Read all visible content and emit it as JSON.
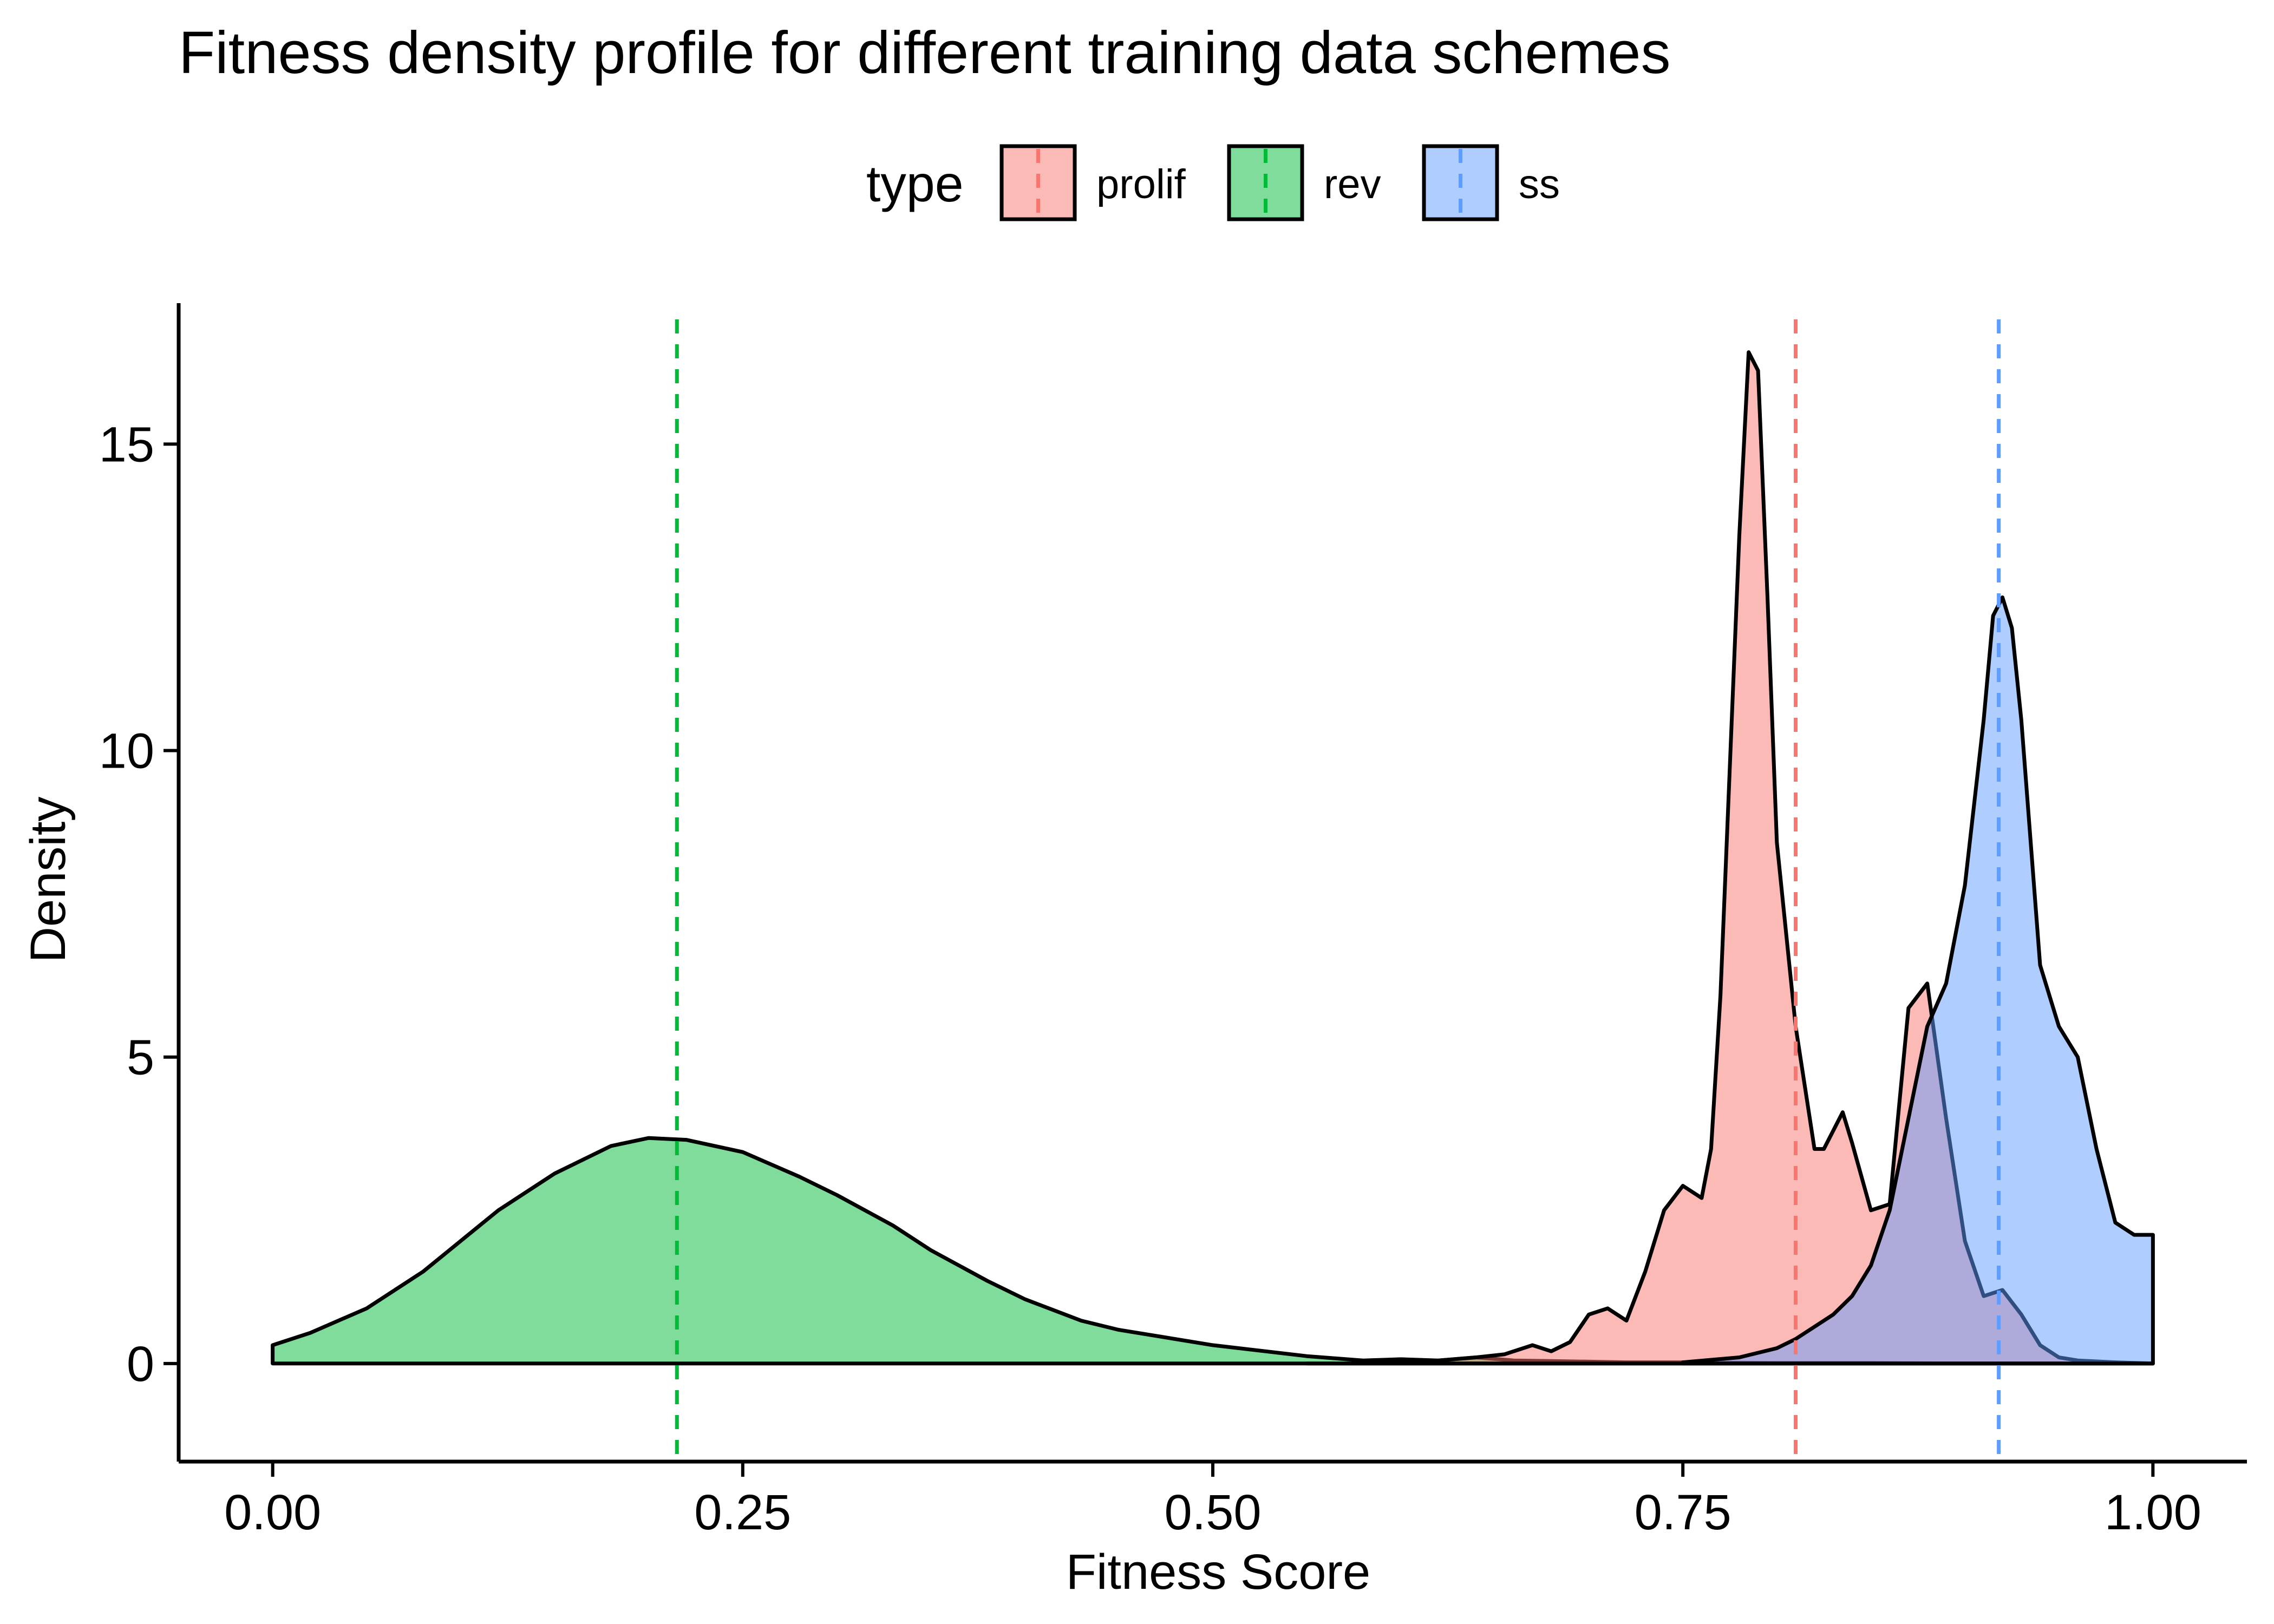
{
  "chart_data": {
    "type": "area",
    "title": "Fitness density profile for different training data schemes",
    "xlabel": "Fitness Score",
    "ylabel": "Density",
    "xlim": [
      -0.05,
      1.05
    ],
    "ylim": [
      -1.6,
      17.3
    ],
    "x_ticks": [
      0.0,
      0.25,
      0.5,
      0.75,
      1.0
    ],
    "x_tick_labels": [
      "0.00",
      "0.25",
      "0.50",
      "0.75",
      "1.00"
    ],
    "y_ticks": [
      0,
      5,
      10,
      15
    ],
    "y_tick_labels": [
      "0",
      "5",
      "10",
      "15"
    ],
    "grid": false,
    "legend": {
      "title": "type",
      "position": "top"
    },
    "series": [
      {
        "name": "rev",
        "color": "#00BA38",
        "mean": 0.215,
        "x": [
          0.0,
          0.02,
          0.05,
          0.08,
          0.1,
          0.12,
          0.15,
          0.18,
          0.2,
          0.22,
          0.25,
          0.28,
          0.3,
          0.33,
          0.35,
          0.38,
          0.4,
          0.43,
          0.45,
          0.5,
          0.55,
          0.58,
          0.6,
          0.62,
          0.64,
          0.66,
          0.68,
          0.7,
          0.72,
          0.75,
          0.8,
          0.85,
          0.9,
          0.95,
          1.0
        ],
        "y": [
          0.3,
          0.5,
          0.9,
          1.5,
          2.0,
          2.5,
          3.1,
          3.55,
          3.68,
          3.65,
          3.45,
          3.05,
          2.75,
          2.25,
          1.85,
          1.35,
          1.05,
          0.7,
          0.55,
          0.3,
          0.12,
          0.05,
          0.07,
          0.05,
          0.1,
          0.05,
          0.04,
          0.03,
          0.02,
          0.02,
          0.01,
          0.01,
          0.0,
          0.0,
          0.0
        ]
      },
      {
        "name": "prolif",
        "color": "#F8766D",
        "mean": 0.81,
        "x": [
          0.55,
          0.58,
          0.6,
          0.62,
          0.64,
          0.655,
          0.67,
          0.68,
          0.69,
          0.7,
          0.71,
          0.72,
          0.73,
          0.74,
          0.75,
          0.76,
          0.765,
          0.77,
          0.78,
          0.785,
          0.79,
          0.795,
          0.8,
          0.81,
          0.82,
          0.825,
          0.835,
          0.84,
          0.85,
          0.86,
          0.87,
          0.88,
          0.89,
          0.9,
          0.91,
          0.92,
          0.93,
          0.94,
          0.95,
          0.96,
          0.98,
          1.0
        ],
        "y": [
          0.0,
          0.0,
          0.02,
          0.05,
          0.1,
          0.15,
          0.3,
          0.2,
          0.35,
          0.8,
          0.9,
          0.7,
          1.5,
          2.5,
          2.9,
          2.7,
          3.5,
          6.0,
          13.5,
          16.5,
          16.2,
          12.5,
          8.5,
          5.5,
          3.5,
          3.5,
          4.1,
          3.6,
          2.5,
          2.6,
          5.8,
          6.2,
          4.0,
          2.0,
          1.1,
          1.2,
          0.8,
          0.3,
          0.1,
          0.05,
          0.02,
          0.0
        ]
      },
      {
        "name": "ss",
        "color": "#619CFF",
        "mean": 0.918,
        "x": [
          0.75,
          0.78,
          0.8,
          0.81,
          0.83,
          0.84,
          0.85,
          0.86,
          0.87,
          0.88,
          0.89,
          0.9,
          0.91,
          0.915,
          0.92,
          0.925,
          0.93,
          0.94,
          0.95,
          0.96,
          0.97,
          0.98,
          0.99,
          1.0
        ],
        "y": [
          0.02,
          0.1,
          0.25,
          0.4,
          0.8,
          1.1,
          1.6,
          2.5,
          4.0,
          5.5,
          6.2,
          7.8,
          10.5,
          12.2,
          12.5,
          12.0,
          10.5,
          6.5,
          5.5,
          5.0,
          3.5,
          2.3,
          2.1,
          2.1
        ]
      }
    ]
  }
}
